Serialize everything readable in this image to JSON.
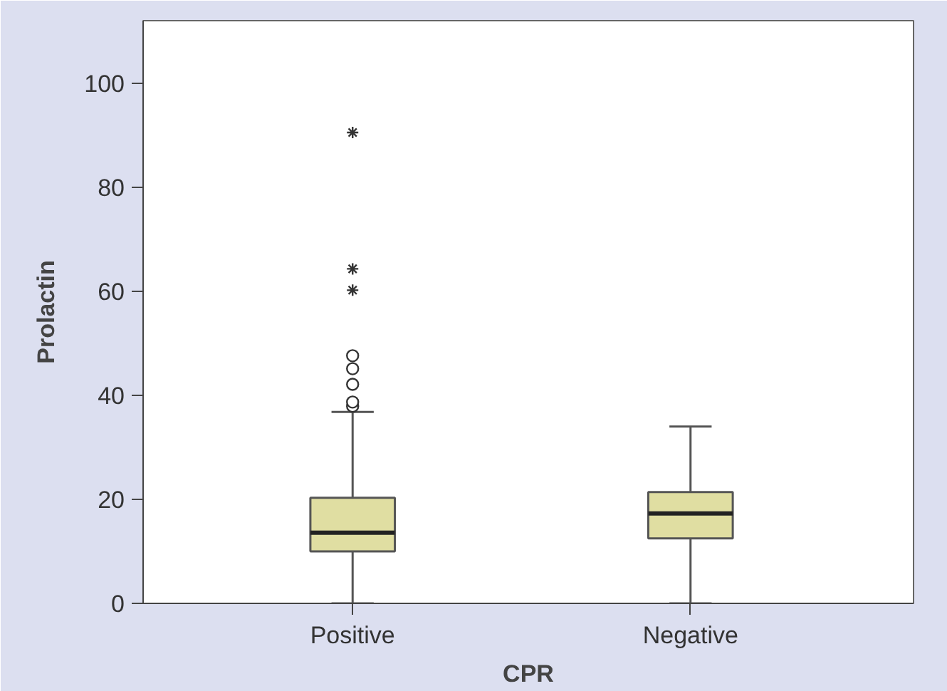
{
  "chart_data": {
    "type": "box",
    "xlabel": "CPR",
    "ylabel": "Prolactin",
    "categories": [
      "Positive",
      "Negative"
    ],
    "boxes": [
      {
        "low": 0,
        "q1": 10,
        "median": 13.6,
        "q3": 20.3,
        "high": 36.8,
        "outliers": [
          37.9,
          38.7,
          42.1,
          45.1,
          47.6,
          60.2,
          64.3,
          90.5
        ]
      },
      {
        "low": 0,
        "q1": 12.5,
        "median": 17.3,
        "q3": 21.4,
        "high": 34
      }
    ],
    "color": "#e0dea2",
    "ylim": [
      0,
      112
    ],
    "yticks": [
      0,
      20,
      40,
      60,
      80,
      100
    ],
    "grid": false
  }
}
